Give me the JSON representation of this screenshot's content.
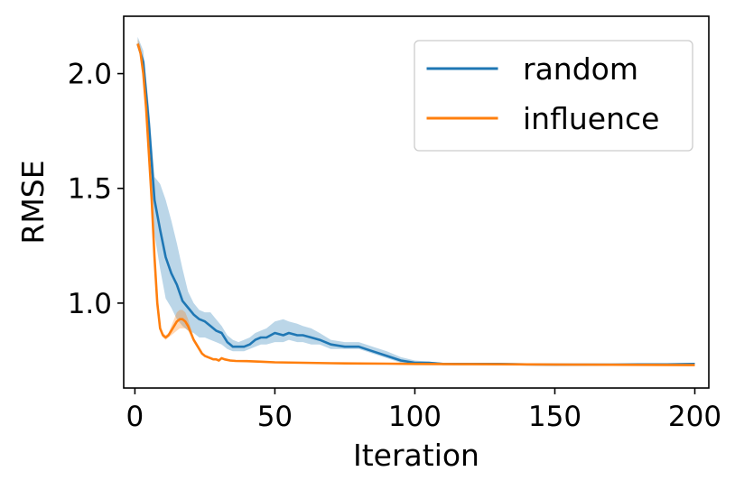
{
  "chart_data": {
    "type": "line",
    "title": "",
    "xlabel": "Iteration",
    "ylabel": "RMSE",
    "xlim": [
      -4,
      205
    ],
    "ylim": [
      0.63,
      2.25
    ],
    "xticks": [
      0,
      50,
      100,
      150,
      200
    ],
    "xtick_labels": [
      "0",
      "50",
      "100",
      "150",
      "200"
    ],
    "yticks": [
      1.0,
      1.5,
      2.0
    ],
    "ytick_labels": [
      "1.0",
      "1.5",
      "2.0"
    ],
    "grid": false,
    "legend_position": "top-right",
    "series": [
      {
        "name": "random",
        "color": "#1f77b4",
        "band_color": "#1f77b4",
        "x": [
          1,
          3,
          5,
          7,
          9,
          11,
          13,
          15,
          17,
          19,
          21,
          23,
          25,
          27,
          29,
          31,
          33,
          35,
          37,
          39,
          41,
          43,
          45,
          47,
          50,
          53,
          55,
          58,
          60,
          63,
          66,
          70,
          75,
          80,
          85,
          90,
          95,
          100,
          105,
          110,
          120,
          130,
          140,
          150,
          160,
          170,
          180,
          190,
          200
        ],
        "values": [
          2.13,
          2.05,
          1.78,
          1.45,
          1.32,
          1.2,
          1.13,
          1.08,
          1.01,
          0.98,
          0.95,
          0.93,
          0.92,
          0.9,
          0.88,
          0.87,
          0.83,
          0.81,
          0.81,
          0.81,
          0.82,
          0.84,
          0.85,
          0.85,
          0.87,
          0.86,
          0.87,
          0.86,
          0.86,
          0.85,
          0.84,
          0.82,
          0.81,
          0.81,
          0.79,
          0.77,
          0.75,
          0.74,
          0.74,
          0.735,
          0.735,
          0.735,
          0.733,
          0.732,
          0.732,
          0.732,
          0.733,
          0.733,
          0.735
        ],
        "lower": [
          2.13,
          2.0,
          1.7,
          1.3,
          1.15,
          1.02,
          0.98,
          0.93,
          0.9,
          0.88,
          0.87,
          0.85,
          0.85,
          0.84,
          0.83,
          0.82,
          0.8,
          0.79,
          0.79,
          0.79,
          0.8,
          0.81,
          0.82,
          0.82,
          0.83,
          0.83,
          0.84,
          0.83,
          0.83,
          0.82,
          0.82,
          0.8,
          0.8,
          0.8,
          0.78,
          0.76,
          0.74,
          0.735,
          0.735,
          0.73,
          0.73,
          0.73,
          0.73,
          0.73,
          0.73,
          0.73,
          0.73,
          0.73,
          0.73
        ],
        "upper": [
          2.16,
          2.1,
          1.86,
          1.55,
          1.52,
          1.45,
          1.36,
          1.26,
          1.15,
          1.05,
          1.0,
          0.97,
          0.96,
          0.96,
          0.93,
          0.9,
          0.86,
          0.84,
          0.83,
          0.84,
          0.85,
          0.87,
          0.88,
          0.89,
          0.92,
          0.93,
          0.92,
          0.91,
          0.9,
          0.89,
          0.87,
          0.84,
          0.83,
          0.83,
          0.81,
          0.79,
          0.765,
          0.75,
          0.745,
          0.74,
          0.74,
          0.74,
          0.737,
          0.735,
          0.735,
          0.735,
          0.737,
          0.737,
          0.74
        ]
      },
      {
        "name": "influence",
        "color": "#ff7f0e",
        "band_color": "#ff7f0e",
        "x": [
          1,
          2,
          3,
          4,
          5,
          6,
          7,
          8,
          9,
          10,
          11,
          12,
          13,
          14,
          15,
          16,
          17,
          18,
          19,
          20,
          21,
          22,
          23,
          24,
          25,
          26,
          27,
          28,
          29,
          30,
          31,
          32,
          34,
          36,
          40,
          45,
          50,
          60,
          70,
          80,
          90,
          100,
          120,
          140,
          160,
          180,
          200
        ],
        "values": [
          2.13,
          2.09,
          2.0,
          1.85,
          1.65,
          1.45,
          1.2,
          1.0,
          0.89,
          0.86,
          0.85,
          0.86,
          0.88,
          0.9,
          0.92,
          0.93,
          0.93,
          0.92,
          0.9,
          0.87,
          0.84,
          0.82,
          0.8,
          0.78,
          0.77,
          0.765,
          0.76,
          0.755,
          0.755,
          0.75,
          0.76,
          0.755,
          0.75,
          0.748,
          0.747,
          0.745,
          0.742,
          0.74,
          0.738,
          0.737,
          0.736,
          0.735,
          0.734,
          0.733,
          0.732,
          0.731,
          0.73
        ],
        "lower": [
          2.13,
          2.07,
          1.97,
          1.82,
          1.62,
          1.42,
          1.18,
          0.98,
          0.88,
          0.85,
          0.84,
          0.85,
          0.86,
          0.87,
          0.88,
          0.89,
          0.89,
          0.89,
          0.88,
          0.86,
          0.83,
          0.81,
          0.79,
          0.775,
          0.765,
          0.76,
          0.755,
          0.75,
          0.75,
          0.745,
          0.755,
          0.75,
          0.745,
          0.744,
          0.743,
          0.741,
          0.739,
          0.737,
          0.735,
          0.734,
          0.733,
          0.732,
          0.731,
          0.73,
          0.729,
          0.728,
          0.727
        ],
        "upper": [
          2.15,
          2.12,
          2.03,
          1.88,
          1.68,
          1.48,
          1.23,
          1.02,
          0.9,
          0.87,
          0.86,
          0.87,
          0.9,
          0.93,
          0.96,
          0.97,
          0.97,
          0.96,
          0.93,
          0.89,
          0.85,
          0.83,
          0.81,
          0.785,
          0.775,
          0.77,
          0.765,
          0.76,
          0.76,
          0.755,
          0.765,
          0.76,
          0.755,
          0.752,
          0.751,
          0.749,
          0.745,
          0.743,
          0.741,
          0.74,
          0.739,
          0.738,
          0.737,
          0.736,
          0.735,
          0.734,
          0.733
        ]
      }
    ]
  }
}
